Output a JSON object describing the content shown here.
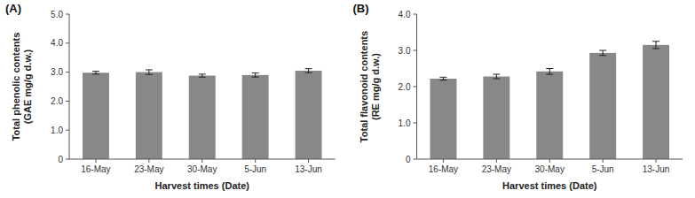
{
  "chart_data": [
    {
      "type": "bar",
      "title": "(A)",
      "categories": [
        "16-May",
        "23-May",
        "30-May",
        "5-Jun",
        "13-Jun"
      ],
      "values": [
        2.98,
        3.0,
        2.88,
        2.9,
        3.05
      ],
      "errors": [
        0.05,
        0.08,
        0.05,
        0.07,
        0.07
      ],
      "color": "#888888",
      "xlabel": "Harvest times (Date)",
      "ylabel": "Total phenolic contents\n(GAE mg/g d.w.)",
      "ylim": [
        0,
        5.0
      ],
      "yticks": [
        0,
        {
          "value": 1.0,
          "label": "1.0"
        },
        {
          "value": 2.0,
          "label": "2.0"
        },
        {
          "value": 3.0,
          "label": "3.0"
        },
        {
          "value": 4.0,
          "label": "4.0"
        },
        {
          "value": 5.0,
          "label": "5.0"
        }
      ],
      "grid": false
    },
    {
      "type": "bar",
      "title": "(B)",
      "categories": [
        "16-May",
        "23-May",
        "30-May",
        "5-Jun",
        "13-Jun"
      ],
      "values": [
        2.22,
        2.28,
        2.42,
        2.93,
        3.15
      ],
      "errors": [
        0.04,
        0.06,
        0.08,
        0.07,
        0.1
      ],
      "color": "#888888",
      "xlabel": "Harvest times (Date)",
      "ylabel": "Total flavonoid contents\n(RE mg/g d.w.)",
      "ylim": [
        0,
        4.0
      ],
      "yticks": [
        0,
        {
          "value": 1.0,
          "label": "1.0"
        },
        {
          "value": 2.0,
          "label": "2.0"
        },
        {
          "value": 3.0,
          "label": "3.0"
        },
        {
          "value": 4.0,
          "label": "4.0"
        }
      ],
      "grid": false
    }
  ]
}
